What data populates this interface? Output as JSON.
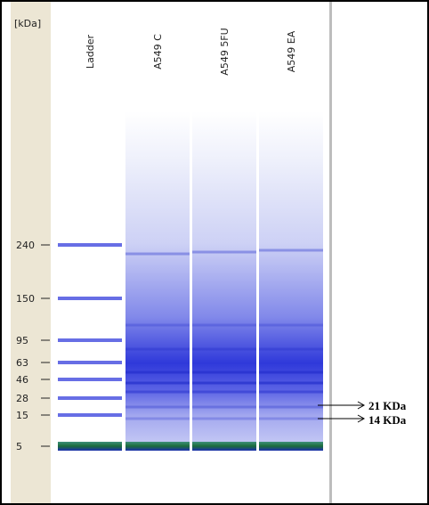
{
  "unit_label": "[kDa]",
  "lanes": [
    "Ladder",
    "A549 C",
    "A549 5FU",
    "A549 EA"
  ],
  "markers": [
    "240",
    "150",
    "95",
    "63",
    "46",
    "28",
    "15",
    "5"
  ],
  "annotations": [
    "21 KDa",
    "14 KDa"
  ]
}
